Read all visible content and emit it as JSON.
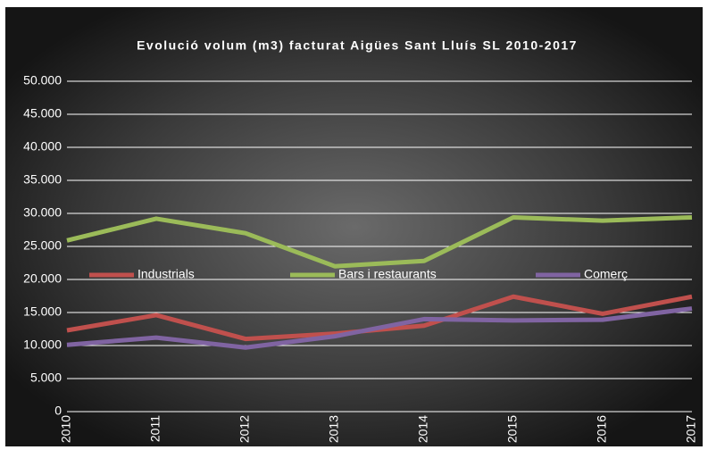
{
  "chart_data": {
    "type": "line",
    "title": "Evolució volum (m3) facturat Aigües Sant Lluís SL 2010-2017",
    "categories": [
      "2010",
      "2011",
      "2012",
      "2013",
      "2014",
      "2015",
      "2016",
      "2017"
    ],
    "series": [
      {
        "name": "Industrials",
        "color": "#c0504d",
        "values": [
          12300,
          14600,
          11000,
          11800,
          13000,
          17400,
          14800,
          17400
        ]
      },
      {
        "name": "Bars i restaurants",
        "color": "#9bbb59",
        "values": [
          25900,
          29200,
          27000,
          22000,
          22800,
          29400,
          28900,
          29400
        ]
      },
      {
        "name": "Comerç",
        "color": "#8064a2",
        "values": [
          10100,
          11200,
          9700,
          11400,
          14000,
          13800,
          13900,
          15600
        ]
      }
    ],
    "ylim": [
      0,
      50000
    ],
    "yticks": [
      0,
      {
        "value": 5000,
        "label": "5.000"
      },
      {
        "value": 10000,
        "label": "10.000"
      },
      {
        "value": 15000,
        "label": "15.000"
      },
      {
        "value": 20000,
        "label": "20.000"
      },
      {
        "value": 25000,
        "label": "25.000"
      },
      {
        "value": 30000,
        "label": "30.000"
      },
      {
        "value": 35000,
        "label": "35.000"
      },
      {
        "value": 40000,
        "label": "40.000"
      },
      {
        "value": 45000,
        "label": "45.000"
      },
      {
        "value": 50000,
        "label": "50.000"
      }
    ],
    "grid": true,
    "legend": "center"
  }
}
